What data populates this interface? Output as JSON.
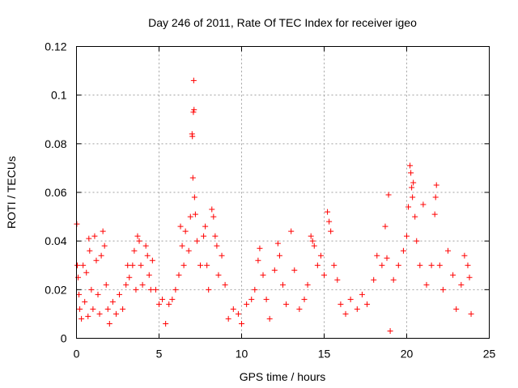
{
  "chart_data": {
    "type": "scatter",
    "title": "Day 246 of 2011, Rate Of TEC Index for receiver igeo",
    "xlabel": "GPS time / hours",
    "ylabel": "ROTI / TECUs",
    "xlim": [
      0,
      25
    ],
    "ylim": [
      0,
      0.12
    ],
    "xticks": [
      0,
      5,
      10,
      15,
      20,
      25
    ],
    "yticks": [
      0,
      0.02,
      0.04,
      0.06,
      0.08,
      0.1,
      0.12
    ],
    "xtick_labels": [
      "0",
      "5",
      "10",
      "15",
      "20",
      "25"
    ],
    "ytick_labels": [
      "0",
      "0.02",
      "0.04",
      "0.06",
      "0.08",
      "0.1",
      "0.12"
    ],
    "grid": true,
    "marker": "+",
    "marker_color": "#ff0000",
    "series": [
      {
        "name": "ROTI",
        "points": [
          [
            0.02,
            0.047
          ],
          [
            0.05,
            0.03
          ],
          [
            0.1,
            0.025
          ],
          [
            0.15,
            0.018
          ],
          [
            0.2,
            0.012
          ],
          [
            0.3,
            0.008
          ],
          [
            0.4,
            0.03
          ],
          [
            0.5,
            0.015
          ],
          [
            0.6,
            0.027
          ],
          [
            0.7,
            0.009
          ],
          [
            0.75,
            0.041
          ],
          [
            0.8,
            0.036
          ],
          [
            0.9,
            0.02
          ],
          [
            1.0,
            0.012
          ],
          [
            1.1,
            0.042
          ],
          [
            1.2,
            0.032
          ],
          [
            1.3,
            0.018
          ],
          [
            1.4,
            0.01
          ],
          [
            1.5,
            0.034
          ],
          [
            1.6,
            0.044
          ],
          [
            1.7,
            0.038
          ],
          [
            1.8,
            0.022
          ],
          [
            1.9,
            0.012
          ],
          [
            2.0,
            0.006
          ],
          [
            2.2,
            0.015
          ],
          [
            2.4,
            0.01
          ],
          [
            2.6,
            0.018
          ],
          [
            2.8,
            0.012
          ],
          [
            3.0,
            0.022
          ],
          [
            3.1,
            0.03
          ],
          [
            3.2,
            0.025
          ],
          [
            3.4,
            0.03
          ],
          [
            3.5,
            0.036
          ],
          [
            3.6,
            0.02
          ],
          [
            3.7,
            0.042
          ],
          [
            3.8,
            0.04
          ],
          [
            3.9,
            0.03
          ],
          [
            4.0,
            0.022
          ],
          [
            4.2,
            0.038
          ],
          [
            4.3,
            0.034
          ],
          [
            4.4,
            0.026
          ],
          [
            4.5,
            0.02
          ],
          [
            4.6,
            0.032
          ],
          [
            4.8,
            0.02
          ],
          [
            5.0,
            0.014
          ],
          [
            5.2,
            0.016
          ],
          [
            5.4,
            0.006
          ],
          [
            5.6,
            0.014
          ],
          [
            5.8,
            0.016
          ],
          [
            6.0,
            0.02
          ],
          [
            6.2,
            0.026
          ],
          [
            6.3,
            0.046
          ],
          [
            6.4,
            0.038
          ],
          [
            6.5,
            0.03
          ],
          [
            6.6,
            0.044
          ],
          [
            6.8,
            0.036
          ],
          [
            6.9,
            0.05
          ],
          [
            7.0,
            0.084
          ],
          [
            7.02,
            0.083
          ],
          [
            7.05,
            0.066
          ],
          [
            7.08,
            0.093
          ],
          [
            7.1,
            0.106
          ],
          [
            7.12,
            0.094
          ],
          [
            7.15,
            0.058
          ],
          [
            7.2,
            0.051
          ],
          [
            7.3,
            0.04
          ],
          [
            7.5,
            0.03
          ],
          [
            7.7,
            0.042
          ],
          [
            7.8,
            0.046
          ],
          [
            7.9,
            0.03
          ],
          [
            8.0,
            0.02
          ],
          [
            8.2,
            0.053
          ],
          [
            8.3,
            0.05
          ],
          [
            8.4,
            0.042
          ],
          [
            8.5,
            0.038
          ],
          [
            8.6,
            0.026
          ],
          [
            8.8,
            0.034
          ],
          [
            9.0,
            0.022
          ],
          [
            9.2,
            0.008
          ],
          [
            9.5,
            0.012
          ],
          [
            9.8,
            0.01
          ],
          [
            10.0,
            0.006
          ],
          [
            10.3,
            0.014
          ],
          [
            10.6,
            0.016
          ],
          [
            10.8,
            0.02
          ],
          [
            11.0,
            0.032
          ],
          [
            11.1,
            0.037
          ],
          [
            11.3,
            0.026
          ],
          [
            11.5,
            0.016
          ],
          [
            11.7,
            0.008
          ],
          [
            12.0,
            0.028
          ],
          [
            12.2,
            0.039
          ],
          [
            12.3,
            0.034
          ],
          [
            12.5,
            0.022
          ],
          [
            12.7,
            0.014
          ],
          [
            13.0,
            0.044
          ],
          [
            13.2,
            0.028
          ],
          [
            13.5,
            0.012
          ],
          [
            13.8,
            0.016
          ],
          [
            14.0,
            0.022
          ],
          [
            14.2,
            0.042
          ],
          [
            14.3,
            0.04
          ],
          [
            14.4,
            0.038
          ],
          [
            14.6,
            0.03
          ],
          [
            14.8,
            0.034
          ],
          [
            15.0,
            0.026
          ],
          [
            15.2,
            0.052
          ],
          [
            15.3,
            0.048
          ],
          [
            15.4,
            0.044
          ],
          [
            15.6,
            0.03
          ],
          [
            15.8,
            0.024
          ],
          [
            16.0,
            0.014
          ],
          [
            16.3,
            0.01
          ],
          [
            16.6,
            0.016
          ],
          [
            17.0,
            0.012
          ],
          [
            17.3,
            0.018
          ],
          [
            17.6,
            0.014
          ],
          [
            18.0,
            0.024
          ],
          [
            18.2,
            0.034
          ],
          [
            18.5,
            0.03
          ],
          [
            18.7,
            0.046
          ],
          [
            18.8,
            0.033
          ],
          [
            18.9,
            0.059
          ],
          [
            19.0,
            0.003
          ],
          [
            19.2,
            0.024
          ],
          [
            19.5,
            0.03
          ],
          [
            19.8,
            0.036
          ],
          [
            20.0,
            0.042
          ],
          [
            20.1,
            0.054
          ],
          [
            20.2,
            0.071
          ],
          [
            20.25,
            0.068
          ],
          [
            20.3,
            0.062
          ],
          [
            20.35,
            0.058
          ],
          [
            20.4,
            0.064
          ],
          [
            20.5,
            0.05
          ],
          [
            20.6,
            0.04
          ],
          [
            20.8,
            0.03
          ],
          [
            21.0,
            0.055
          ],
          [
            21.2,
            0.022
          ],
          [
            21.5,
            0.03
          ],
          [
            21.7,
            0.051
          ],
          [
            21.75,
            0.058
          ],
          [
            21.8,
            0.063
          ],
          [
            22.0,
            0.03
          ],
          [
            22.2,
            0.02
          ],
          [
            22.5,
            0.036
          ],
          [
            22.8,
            0.026
          ],
          [
            23.0,
            0.012
          ],
          [
            23.3,
            0.022
          ],
          [
            23.5,
            0.034
          ],
          [
            23.7,
            0.03
          ],
          [
            23.8,
            0.025
          ],
          [
            23.9,
            0.01
          ]
        ]
      }
    ]
  }
}
